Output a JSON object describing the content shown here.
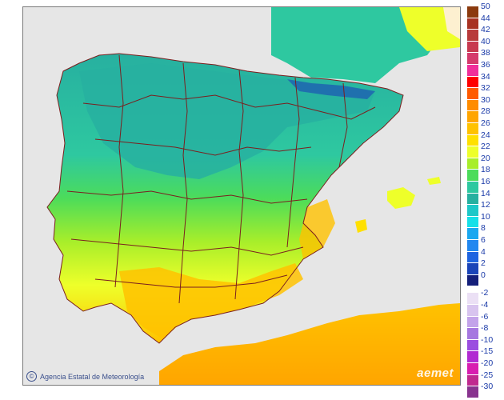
{
  "map": {
    "credit_text": "Agencia Estatal de Meteorología",
    "credit_symbol": "©",
    "logo_text": "aemet",
    "colors": {
      "sea": "#e6e6e6",
      "border": "#7b1f1f",
      "france": "#fdf0d0"
    }
  },
  "legend": {
    "positive": [
      {
        "label": "50",
        "color": "#8b3a0e"
      },
      {
        "label": "44",
        "color": "#a83222"
      },
      {
        "label": "42",
        "color": "#b83a3a"
      },
      {
        "label": "40",
        "color": "#c8394f"
      },
      {
        "label": "38",
        "color": "#d53b6c"
      },
      {
        "label": "36",
        "color": "#f02f9a"
      },
      {
        "label": "34",
        "color": "#ff0000"
      },
      {
        "label": "32",
        "color": "#ff5a00"
      },
      {
        "label": "30",
        "color": "#ff8c00"
      },
      {
        "label": "28",
        "color": "#ffa500"
      },
      {
        "label": "26",
        "color": "#ffc200"
      },
      {
        "label": "24",
        "color": "#ffe000"
      },
      {
        "label": "22",
        "color": "#eeff2a"
      },
      {
        "label": "20",
        "color": "#a8ee2a"
      },
      {
        "label": "18",
        "color": "#4cdc5a"
      },
      {
        "label": "16",
        "color": "#2ec8a0"
      },
      {
        "label": "14",
        "color": "#27b0a0"
      },
      {
        "label": "12",
        "color": "#1ec8c8"
      },
      {
        "label": "10",
        "color": "#16e0e8"
      },
      {
        "label": "8",
        "color": "#1aa8f0"
      },
      {
        "label": "6",
        "color": "#2288f0"
      },
      {
        "label": "4",
        "color": "#1e64e0"
      },
      {
        "label": "2",
        "color": "#1a44b8"
      },
      {
        "label": "0",
        "color": "#141f7a"
      }
    ],
    "negative": [
      {
        "label": "-2",
        "color": "#ebe0f5"
      },
      {
        "label": "-4",
        "color": "#d8c4ef"
      },
      {
        "label": "-6",
        "color": "#c3a3ea"
      },
      {
        "label": "-8",
        "color": "#a677e0"
      },
      {
        "label": "-10",
        "color": "#9b4ee0"
      },
      {
        "label": "-15",
        "color": "#b12bd2"
      },
      {
        "label": "-20",
        "color": "#d81eb0"
      },
      {
        "label": "-25",
        "color": "#c02a8f"
      },
      {
        "label": "-30",
        "color": "#88338e"
      }
    ]
  }
}
